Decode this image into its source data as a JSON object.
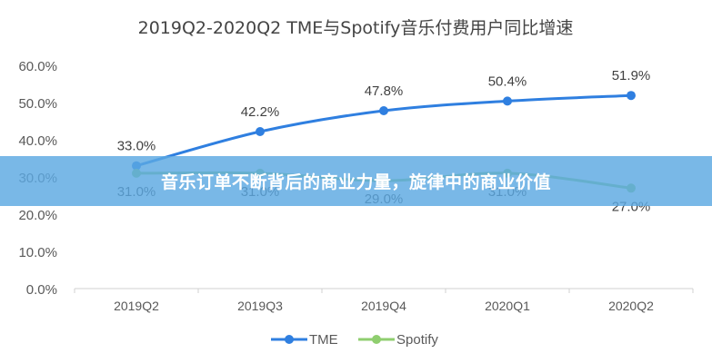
{
  "chart_data": {
    "type": "line",
    "title": "2019Q2-2020Q2 TME与Spotify音乐付费用户同比增速",
    "categories": [
      "2019Q2",
      "2019Q3",
      "2019Q4",
      "2020Q1",
      "2020Q2"
    ],
    "ylim": [
      0,
      60
    ],
    "yticks": [
      "0.0%",
      "10.0%",
      "20.0%",
      "30.0%",
      "40.0%",
      "50.0%",
      "60.0%"
    ],
    "grid": false,
    "legend_position": "bottom",
    "series": [
      {
        "name": "TME",
        "color": "#2f7fe0",
        "values": [
          33.0,
          42.2,
          47.8,
          50.4,
          51.9
        ],
        "labels": [
          "33.0%",
          "42.2%",
          "47.8%",
          "50.4%",
          "51.9%"
        ]
      },
      {
        "name": "Spotify",
        "color": "#8fce6f",
        "values": [
          31.0,
          31.0,
          29.0,
          31.0,
          27.0
        ],
        "labels": [
          "31.0%",
          "31.0%",
          "29.0%",
          "31.0%",
          "27.0%"
        ]
      }
    ]
  },
  "banner": {
    "text": "音乐订单不断背后的商业力量，旋律中的商业价值"
  }
}
